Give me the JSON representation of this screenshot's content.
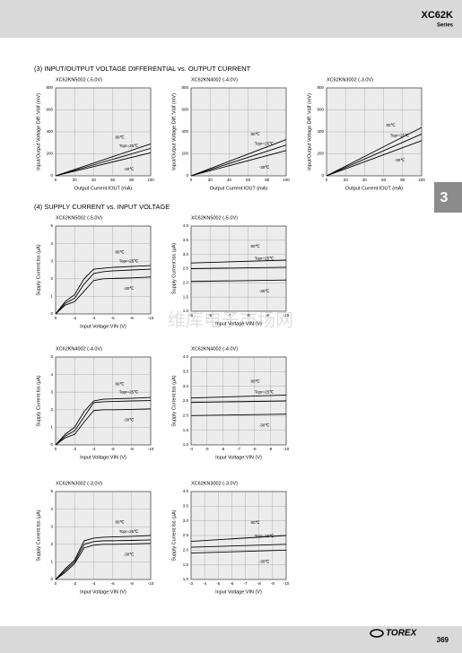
{
  "header": {
    "title": "XC62K",
    "subtitle": "Series"
  },
  "sections": [
    "(3) INPUT/OUTPUT VOLTAGE DIFFERENTIAL vs. OUTPUT CURRENT",
    "(4) SUPPLY CURRENT vs. INPUT VOLTAGE"
  ],
  "tab": "3",
  "watermark": "维库电子市场网",
  "footer": {
    "logo": "TOREX",
    "page": "369"
  },
  "chart_data": [
    {
      "type": "line",
      "title": "XC62KN5002 (-5.0V)",
      "xlabel": "Output Current:IOUT (mA)",
      "ylabel": "Input/Output Voltage Diff.:Vdif (mV)",
      "x": [
        0,
        100
      ],
      "xlim": [
        0,
        100
      ],
      "xticks": [
        0,
        20,
        40,
        60,
        80,
        100
      ],
      "ylim": [
        0,
        800
      ],
      "yticks": [
        0,
        200,
        400,
        600,
        800
      ],
      "grid": true,
      "series": [
        {
          "name": "80℃",
          "color": "#000000",
          "values": [
            0,
            290
          ]
        },
        {
          "name": "Topr=25℃",
          "color": "#000000",
          "values": [
            0,
            250
          ]
        },
        {
          "name": "-30℃",
          "color": "#000000",
          "values": [
            0,
            210
          ]
        }
      ]
    },
    {
      "type": "line",
      "title": "XC62KN4002 (-4.0V)",
      "xlabel": "Output Current:IOUT (mA)",
      "ylabel": "Input/Output Voltage Diff.:Vdif (mV)",
      "x": [
        0,
        100
      ],
      "xlim": [
        0,
        100
      ],
      "xticks": [
        0,
        20,
        40,
        60,
        80,
        100
      ],
      "ylim": [
        0,
        800
      ],
      "yticks": [
        0,
        200,
        400,
        600,
        800
      ],
      "grid": true,
      "series": [
        {
          "name": "80℃",
          "color": "#000000",
          "values": [
            0,
            330
          ]
        },
        {
          "name": "Topr=25℃",
          "color": "#000000",
          "values": [
            0,
            280
          ]
        },
        {
          "name": "-30℃",
          "color": "#000000",
          "values": [
            0,
            230
          ]
        }
      ]
    },
    {
      "type": "line",
      "title": "XC62KN3002 (-3.0V)",
      "xlabel": "Output Current:IOUT (mA)",
      "ylabel": "Input/Output Voltage Diff.:Vdif (mV)",
      "x": [
        0,
        100
      ],
      "xlim": [
        0,
        100
      ],
      "xticks": [
        0,
        20,
        40,
        60,
        80,
        100
      ],
      "ylim": [
        0,
        800
      ],
      "yticks": [
        0,
        200,
        400,
        600,
        800
      ],
      "grid": true,
      "series": [
        {
          "name": "80℃",
          "color": "#000000",
          "values": [
            0,
            440
          ]
        },
        {
          "name": "Topr=25℃",
          "color": "#000000",
          "values": [
            0,
            380
          ]
        },
        {
          "name": "-30℃",
          "color": "#000000",
          "values": [
            0,
            320
          ]
        }
      ]
    },
    {
      "type": "line",
      "title": "XC62KN5002 (-5.0V)",
      "xlabel": "Input Voltage:VIN (V)",
      "ylabel": "Supply Current:Iss (μA)",
      "x": [
        0,
        -1,
        -2,
        -3,
        -4,
        -5,
        -6,
        -8,
        -10
      ],
      "xlim": [
        0,
        -10
      ],
      "xticks": [
        0,
        -2,
        -4,
        -6,
        -8,
        -10
      ],
      "ylim": [
        0,
        5
      ],
      "yticks": [
        0,
        1,
        2,
        3,
        4,
        5
      ],
      "grid": true,
      "series": [
        {
          "name": "80℃",
          "color": "#000000",
          "values": [
            0,
            0.7,
            1.1,
            2.0,
            2.55,
            2.6,
            2.65,
            2.7,
            2.75
          ]
        },
        {
          "name": "Topr=25℃",
          "color": "#000000",
          "values": [
            0,
            0.6,
            0.9,
            1.7,
            2.3,
            2.4,
            2.45,
            2.5,
            2.55
          ]
        },
        {
          "name": "-30℃",
          "color": "#000000",
          "values": [
            0,
            0.5,
            0.7,
            1.3,
            1.9,
            2.0,
            2.02,
            2.05,
            2.1
          ]
        }
      ]
    },
    {
      "type": "line",
      "title": "XC62KN5002 (-5.0V)",
      "xlabel": "Input Voltage:VIN (V)",
      "ylabel": "Supply Current:Iss (μA)",
      "x": [
        -5,
        -10
      ],
      "xlim": [
        -5,
        -10
      ],
      "xticks": [
        -5,
        -6,
        -7,
        -8,
        -9,
        -10
      ],
      "ylim": [
        1,
        4
      ],
      "yticks": [
        {
          "value": 1,
          "label": "1.0"
        },
        1.5,
        {
          "value": 2,
          "label": "2.0"
        },
        2.5,
        {
          "value": 3,
          "label": "3.0"
        },
        3.5,
        {
          "value": 4,
          "label": "4.0"
        }
      ],
      "grid": true,
      "series": [
        {
          "name": "80℃",
          "color": "#000000",
          "values": [
            2.7,
            2.8
          ]
        },
        {
          "name": "Topr=25℃",
          "color": "#000000",
          "values": [
            2.5,
            2.55
          ]
        },
        {
          "name": "-30℃",
          "color": "#000000",
          "values": [
            2.05,
            2.1
          ]
        }
      ]
    },
    {
      "type": "line",
      "title": "XC62KN4002 (-4.0V)",
      "xlabel": "Input Voltage:VIN (V)",
      "ylabel": "Supply Current:Iss (μA)",
      "x": [
        0,
        -1,
        -2,
        -3,
        -4,
        -5,
        -6,
        -8,
        -10
      ],
      "xlim": [
        0,
        -10
      ],
      "xticks": [
        0,
        -2,
        -4,
        -6,
        -8,
        -10
      ],
      "ylim": [
        0,
        5
      ],
      "yticks": [
        0,
        1,
        2,
        3,
        4,
        5
      ],
      "grid": true,
      "series": [
        {
          "name": "80℃",
          "color": "#000000",
          "values": [
            0,
            0.6,
            1.0,
            1.9,
            2.5,
            2.6,
            2.62,
            2.65,
            2.7
          ]
        },
        {
          "name": "Topr=25℃",
          "color": "#000000",
          "values": [
            0,
            0.5,
            0.8,
            1.6,
            2.4,
            2.45,
            2.47,
            2.5,
            2.52
          ]
        },
        {
          "name": "-30℃",
          "color": "#000000",
          "values": [
            0,
            0.4,
            0.6,
            1.3,
            1.95,
            2.0,
            2.0,
            2.02,
            2.05
          ]
        }
      ]
    },
    {
      "type": "line",
      "title": "XC62KN4002 (-4.0V)",
      "xlabel": "Input Voltage:VIN (V)",
      "ylabel": "Supply Current:Iss (μA)",
      "x": [
        -4,
        -10
      ],
      "xlim": [
        -4,
        -10
      ],
      "xticks": [
        -4,
        -5,
        -6,
        -7,
        -8,
        -9,
        -10
      ],
      "ylim": [
        1,
        4
      ],
      "yticks": [
        {
          "value": 1,
          "label": "1.0"
        },
        1.5,
        {
          "value": 2,
          "label": "2.0"
        },
        2.5,
        {
          "value": 3,
          "label": "3.0"
        },
        3.5,
        {
          "value": 4,
          "label": "4.0"
        }
      ],
      "grid": true,
      "series": [
        {
          "name": "80℃",
          "color": "#000000",
          "values": [
            2.6,
            2.7
          ]
        },
        {
          "name": "Topr=25℃",
          "color": "#000000",
          "values": [
            2.45,
            2.5
          ]
        },
        {
          "name": "-30℃",
          "color": "#000000",
          "values": [
            2.0,
            2.05
          ]
        }
      ]
    },
    {
      "type": "line",
      "title": "XC62KN3002 (-3.0V)",
      "xlabel": "Input Voltage:VIN (V)",
      "ylabel": "Supply Current:Iss (μA)",
      "x": [
        0,
        -1,
        -2,
        -3,
        -4,
        -5,
        -6,
        -8,
        -10
      ],
      "xlim": [
        0,
        -10
      ],
      "xticks": [
        0,
        -2,
        -4,
        -6,
        -8,
        -10
      ],
      "ylim": [
        0,
        5
      ],
      "yticks": [
        0,
        1,
        2,
        3,
        4,
        5
      ],
      "grid": true,
      "series": [
        {
          "name": "80℃",
          "color": "#000000",
          "values": [
            0,
            0.6,
            1.1,
            2.2,
            2.35,
            2.4,
            2.42,
            2.45,
            2.5
          ]
        },
        {
          "name": "Topr=25℃",
          "color": "#000000",
          "values": [
            0,
            0.5,
            1.0,
            2.0,
            2.15,
            2.2,
            2.2,
            2.22,
            2.25
          ]
        },
        {
          "name": "-30℃",
          "color": "#000000",
          "values": [
            0,
            0.4,
            0.9,
            1.8,
            1.95,
            2.0,
            2.0,
            2.02,
            2.05
          ]
        }
      ]
    },
    {
      "type": "line",
      "title": "XC62KN3002 (-3.0V)",
      "xlabel": "Input Voltage:VIN (V)",
      "ylabel": "Supply Current:Iss (μA)",
      "x": [
        -3,
        -10
      ],
      "xlim": [
        -3,
        -10
      ],
      "xticks": [
        -3,
        -4,
        -5,
        -6,
        -7,
        -8,
        -9,
        -10
      ],
      "ylim": [
        1,
        4
      ],
      "yticks": [
        {
          "value": 1,
          "label": "1.0"
        },
        1.5,
        {
          "value": 2,
          "label": "2.0"
        },
        2.5,
        {
          "value": 3,
          "label": "3.0"
        },
        3.5,
        {
          "value": 4,
          "label": "4.0"
        }
      ],
      "grid": true,
      "series": [
        {
          "name": "80℃",
          "color": "#000000",
          "values": [
            2.3,
            2.5
          ]
        },
        {
          "name": "Topr=25℃",
          "color": "#000000",
          "values": [
            2.1,
            2.2
          ]
        },
        {
          "name": "-30℃",
          "color": "#000000",
          "values": [
            1.9,
            2.0
          ]
        }
      ]
    }
  ]
}
